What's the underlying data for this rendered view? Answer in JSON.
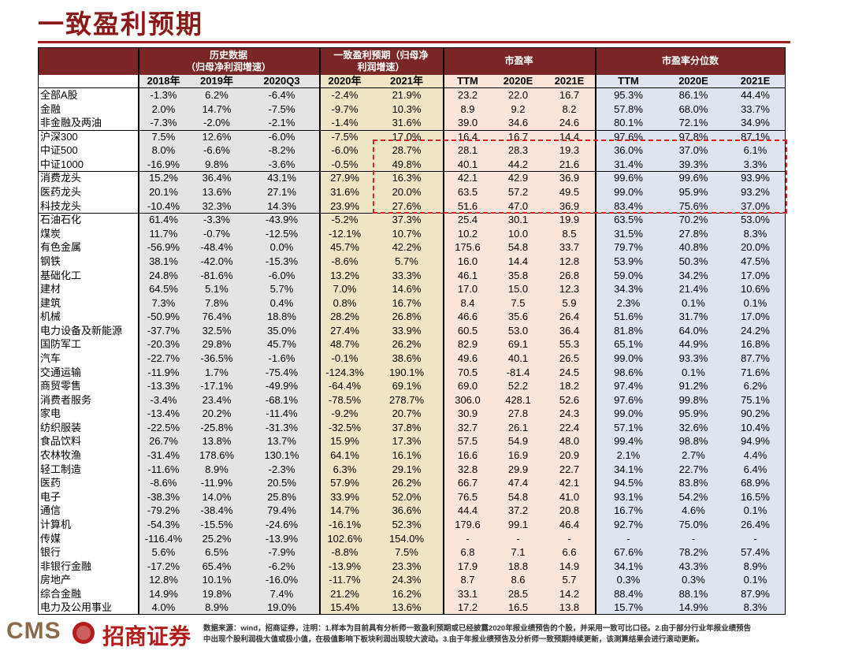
{
  "header": {
    "title": "一致盈利预期"
  },
  "table": {
    "groups": [
      {
        "lines": [
          "历史数据",
          "（归母净利润增速）"
        ]
      },
      {
        "lines": [
          "一致盈利预期（归母净",
          "利润增速）"
        ]
      },
      {
        "lines": [
          "市盈率"
        ]
      },
      {
        "lines": [
          "市盈率分位数"
        ]
      }
    ],
    "columns": [
      "2018年",
      "2019年",
      "2020Q3",
      "2020年",
      "2021年",
      "TTM",
      "2020E",
      "2021E",
      "TTM",
      "2020E",
      "2021E"
    ],
    "rows": [
      [
        "全部A股",
        "-1.3%",
        "6.2%",
        "-6.4%",
        "-2.4%",
        "21.9%",
        "23.2",
        "22.0",
        "16.7",
        "95.3%",
        "86.1%",
        "44.4%"
      ],
      [
        "金融",
        "2.0%",
        "14.7%",
        "-7.5%",
        "-9.7%",
        "10.3%",
        "8.9",
        "9.2",
        "8.2",
        "57.8%",
        "68.0%",
        "33.7%"
      ],
      [
        "非金融及两油",
        "-7.3%",
        "-2.0%",
        "-2.1%",
        "-1.4%",
        "31.6%",
        "39.0",
        "34.6",
        "24.6",
        "80.1%",
        "72.1%",
        "34.9%"
      ],
      [
        "沪深300",
        "7.5%",
        "12.6%",
        "-6.0%",
        "-7.5%",
        "17.0%",
        "16.4",
        "16.7",
        "14.4",
        "97.6%",
        "97.8%",
        "87.1%"
      ],
      [
        "中证500",
        "8.0%",
        "-6.6%",
        "-8.2%",
        "-6.0%",
        "28.7%",
        "28.1",
        "28.3",
        "19.3",
        "36.0%",
        "37.0%",
        "6.1%"
      ],
      [
        "中证1000",
        "-16.9%",
        "9.8%",
        "-3.6%",
        "-0.5%",
        "49.8%",
        "40.1",
        "44.2",
        "21.6",
        "31.4%",
        "39.3%",
        "3.3%"
      ],
      [
        "消费龙头",
        "15.2%",
        "36.4%",
        "43.1%",
        "27.9%",
        "16.3%",
        "42.1",
        "42.9",
        "36.9",
        "99.6%",
        "99.6%",
        "93.9%"
      ],
      [
        "医药龙头",
        "20.1%",
        "13.6%",
        "27.1%",
        "31.6%",
        "20.0%",
        "63.5",
        "57.2",
        "49.5",
        "99.0%",
        "95.9%",
        "93.2%"
      ],
      [
        "科技龙头",
        "-10.4%",
        "32.3%",
        "14.3%",
        "23.9%",
        "27.6%",
        "51.6",
        "47.0",
        "36.9",
        "83.4%",
        "75.6%",
        "37.0%"
      ],
      [
        "石油石化",
        "61.4%",
        "-3.3%",
        "-43.9%",
        "-5.2%",
        "37.3%",
        "25.4",
        "30.1",
        "19.9",
        "63.5%",
        "70.2%",
        "53.0%"
      ],
      [
        "煤炭",
        "11.7%",
        "-0.7%",
        "-12.5%",
        "-12.1%",
        "10.7%",
        "10.2",
        "10.0",
        "8.5",
        "31.5%",
        "27.8%",
        "8.3%"
      ],
      [
        "有色金属",
        "-56.9%",
        "-48.4%",
        "0.0%",
        "45.7%",
        "42.2%",
        "175.6",
        "54.8",
        "33.7",
        "79.7%",
        "40.8%",
        "20.0%"
      ],
      [
        "钢铁",
        "38.1%",
        "-42.0%",
        "-15.3%",
        "-8.6%",
        "5.7%",
        "16.0",
        "14.4",
        "12.8",
        "53.9%",
        "50.3%",
        "47.5%"
      ],
      [
        "基础化工",
        "24.8%",
        "-81.6%",
        "-6.0%",
        "13.2%",
        "33.3%",
        "46.1",
        "35.8",
        "26.8",
        "59.0%",
        "34.2%",
        "17.0%"
      ],
      [
        "建材",
        "64.5%",
        "5.1%",
        "5.7%",
        "7.0%",
        "14.6%",
        "17.0",
        "15.0",
        "12.3",
        "34.3%",
        "21.4%",
        "10.6%"
      ],
      [
        "建筑",
        "7.3%",
        "7.8%",
        "0.4%",
        "0.8%",
        "16.7%",
        "8.4",
        "7.5",
        "5.9",
        "2.3%",
        "0.1%",
        "0.1%"
      ],
      [
        "机械",
        "-50.9%",
        "76.4%",
        "18.8%",
        "28.2%",
        "26.8%",
        "46.6",
        "35.6",
        "26.4",
        "51.6%",
        "31.7%",
        "17.0%"
      ],
      [
        "电力设备及新能源",
        "-37.7%",
        "32.5%",
        "35.0%",
        "27.4%",
        "33.9%",
        "60.5",
        "53.0",
        "36.4",
        "81.8%",
        "64.0%",
        "24.2%"
      ],
      [
        "国防军工",
        "-20.3%",
        "29.8%",
        "45.7%",
        "48.7%",
        "26.2%",
        "82.9",
        "69.1",
        "55.3",
        "65.1%",
        "44.9%",
        "16.8%"
      ],
      [
        "汽车",
        "-22.7%",
        "-36.5%",
        "-1.6%",
        "-0.1%",
        "38.6%",
        "49.6",
        "40.1",
        "26.5",
        "99.0%",
        "93.3%",
        "87.7%"
      ],
      [
        "交通运输",
        "-11.9%",
        "1.7%",
        "-75.4%",
        "-124.3%",
        "190.1%",
        "70.5",
        "-81.4",
        "24.5",
        "98.6%",
        "0.1%",
        "71.6%"
      ],
      [
        "商贸零售",
        "-13.3%",
        "-17.1%",
        "-49.9%",
        "-64.4%",
        "69.1%",
        "69.0",
        "52.2",
        "18.2",
        "97.4%",
        "91.2%",
        "6.2%"
      ],
      [
        "消费者服务",
        "-3.4%",
        "23.4%",
        "-68.1%",
        "-78.5%",
        "278.7%",
        "306.0",
        "428.1",
        "52.6",
        "97.6%",
        "99.8%",
        "75.1%"
      ],
      [
        "家电",
        "-13.4%",
        "20.2%",
        "-11.4%",
        "-9.2%",
        "20.7%",
        "30.9",
        "27.8",
        "24.3",
        "99.0%",
        "95.9%",
        "90.2%"
      ],
      [
        "纺织服装",
        "-22.5%",
        "-25.8%",
        "-31.3%",
        "-32.5%",
        "37.8%",
        "32.7",
        "26.1",
        "22.4",
        "57.1%",
        "32.6%",
        "10.4%"
      ],
      [
        "食品饮料",
        "26.7%",
        "13.8%",
        "13.7%",
        "15.9%",
        "17.3%",
        "57.5",
        "54.9",
        "48.0",
        "99.4%",
        "98.8%",
        "94.9%"
      ],
      [
        "农林牧渔",
        "-31.4%",
        "178.6%",
        "130.1%",
        "64.1%",
        "16.1%",
        "16.6",
        "16.9",
        "20.9",
        "2.1%",
        "2.7%",
        "4.4%"
      ],
      [
        "轻工制造",
        "-11.6%",
        "8.9%",
        "-2.3%",
        "6.3%",
        "29.1%",
        "32.8",
        "29.9",
        "22.7",
        "34.1%",
        "22.7%",
        "6.4%"
      ],
      [
        "医药",
        "-8.6%",
        "-11.9%",
        "20.5%",
        "57.9%",
        "26.2%",
        "66.7",
        "47.4",
        "42.1",
        "94.5%",
        "83.8%",
        "68.9%"
      ],
      [
        "电子",
        "-38.3%",
        "14.0%",
        "25.8%",
        "33.9%",
        "52.0%",
        "76.5",
        "54.8",
        "41.0",
        "93.1%",
        "54.2%",
        "16.5%"
      ],
      [
        "通信",
        "-79.2%",
        "-38.4%",
        "79.4%",
        "14.7%",
        "36.6%",
        "44.4",
        "37.2",
        "20.8",
        "16.7%",
        "4.6%",
        "0.1%"
      ],
      [
        "计算机",
        "-54.3%",
        "-15.5%",
        "-24.6%",
        "-16.1%",
        "52.3%",
        "179.6",
        "99.1",
        "46.4",
        "92.7%",
        "75.0%",
        "26.4%"
      ],
      [
        "传媒",
        "-116.4%",
        "25.2%",
        "-13.9%",
        "102.6%",
        "154.0%",
        "-",
        "-",
        "-",
        "-",
        "-",
        "-"
      ],
      [
        "银行",
        "5.6%",
        "6.5%",
        "-7.9%",
        "-8.8%",
        "7.5%",
        "6.8",
        "7.1",
        "6.6",
        "67.6%",
        "78.2%",
        "57.4%"
      ],
      [
        "非银行金融",
        "-17.2%",
        "65.4%",
        "-6.2%",
        "-13.9%",
        "23.3%",
        "17.9",
        "18.8",
        "14.9",
        "34.1%",
        "43.3%",
        "8.9%"
      ],
      [
        "房地产",
        "12.8%",
        "10.1%",
        "-16.0%",
        "-11.7%",
        "24.3%",
        "8.7",
        "8.6",
        "5.7",
        "0.3%",
        "0.3%",
        "0.1%"
      ],
      [
        "综合金融",
        "14.9%",
        "19.8%",
        "7.4%",
        "21.2%",
        "16.2%",
        "33.1",
        "28.5",
        "14.2",
        "88.4%",
        "88.1%",
        "87.9%"
      ],
      [
        "电力及公用事业",
        "4.0%",
        "8.9%",
        "19.0%",
        "15.4%",
        "13.6%",
        "17.2",
        "16.5",
        "13.8",
        "15.7%",
        "14.9%",
        "8.3%"
      ]
    ]
  },
  "footer": {
    "logo_text": "CMS",
    "brand": "招商证券",
    "note_lines": [
      "数据来源：wind，招商证券，注明：1.样本为目前具有分析师一致盈利预期或已经披露2020年报业绩预告的个股，并采用一致可比口径。2.由于部分行业年报业绩预告",
      "中出现个股利润极大值或极小值，在极值影响下板块利润出现较大波动。3.由于年报业绩预告及分析师一致预期持续更新，该测算结果会进行滚动更新。"
    ]
  }
}
